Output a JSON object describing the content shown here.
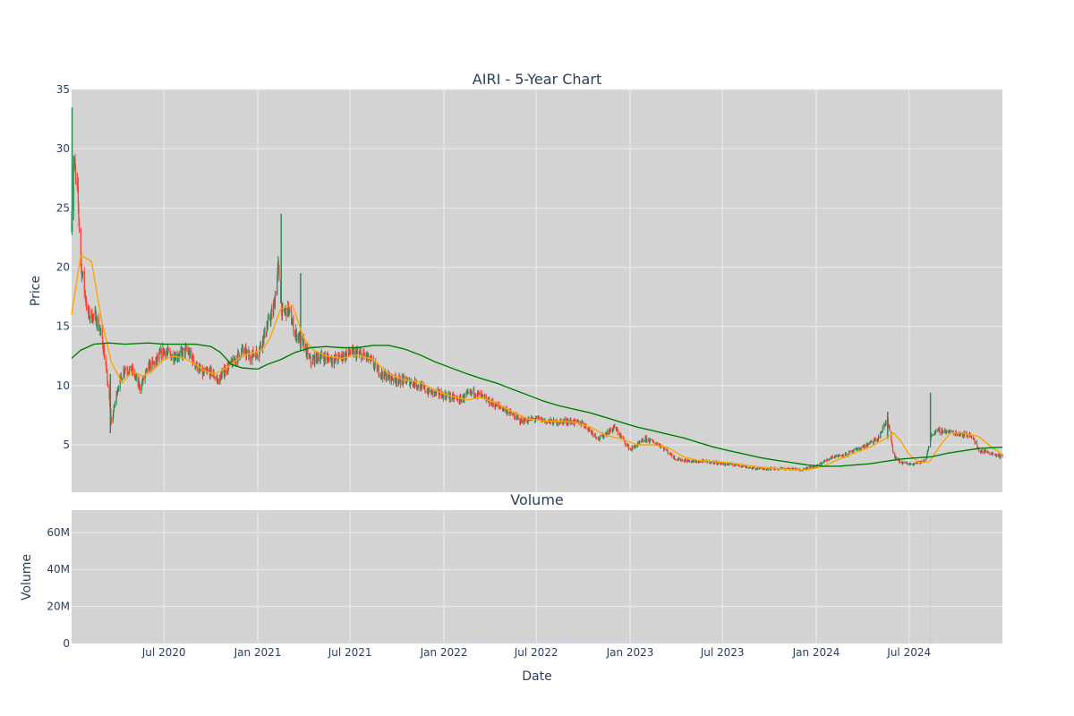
{
  "chart_data": {
    "type": "candlestick",
    "title": "AIRI - 5-Year Chart",
    "subplot_title": "Volume",
    "xlabel": "Date",
    "ylabel_price": "Price",
    "ylabel_volume": "Volume",
    "x_range": [
      "2020-01-02",
      "2024-12-31"
    ],
    "price_ylim": [
      1,
      35
    ],
    "volume_ylim": [
      0,
      72000000
    ],
    "x_ticks": [
      {
        "date": "2020-07-01",
        "label": "Jul 2020"
      },
      {
        "date": "2021-01-01",
        "label": "Jan 2021"
      },
      {
        "date": "2021-07-01",
        "label": "Jul 2021"
      },
      {
        "date": "2022-01-01",
        "label": "Jan 2022"
      },
      {
        "date": "2022-07-01",
        "label": "Jul 2022"
      },
      {
        "date": "2023-01-01",
        "label": "Jan 2023"
      },
      {
        "date": "2023-07-01",
        "label": "Jul 2023"
      },
      {
        "date": "2024-01-01",
        "label": "Jan 2024"
      },
      {
        "date": "2024-07-01",
        "label": "Jul 2024"
      }
    ],
    "price_ticks": [
      {
        "value": 5,
        "label": "5"
      },
      {
        "value": 10,
        "label": "10"
      },
      {
        "value": 15,
        "label": "15"
      },
      {
        "value": 20,
        "label": "20"
      },
      {
        "value": 25,
        "label": "25"
      },
      {
        "value": 30,
        "label": "30"
      },
      {
        "value": 35,
        "label": "35"
      }
    ],
    "volume_ticks": [
      {
        "value": 0,
        "label": "0"
      },
      {
        "value": 20000000,
        "label": "20M"
      },
      {
        "value": 40000000,
        "label": "40M"
      },
      {
        "value": 60000000,
        "label": "60M"
      }
    ],
    "price_close": [
      [
        "2020-01-02",
        24.0
      ],
      [
        "2020-01-06",
        29.0
      ],
      [
        "2020-01-14",
        26.0
      ],
      [
        "2020-01-21",
        20.0
      ],
      [
        "2020-02-03",
        16.0
      ],
      [
        "2020-02-18",
        15.8
      ],
      [
        "2020-03-02",
        14.0
      ],
      [
        "2020-03-12",
        10.5
      ],
      [
        "2020-03-20",
        6.8
      ],
      [
        "2020-04-01",
        9.8
      ],
      [
        "2020-04-15",
        11.5
      ],
      [
        "2020-05-01",
        11.2
      ],
      [
        "2020-05-15",
        9.8
      ],
      [
        "2020-06-01",
        11.6
      ],
      [
        "2020-06-15",
        12.0
      ],
      [
        "2020-07-01",
        13.0
      ],
      [
        "2020-07-15",
        12.5
      ],
      [
        "2020-08-01",
        12.6
      ],
      [
        "2020-08-15",
        13.0
      ],
      [
        "2020-09-01",
        11.8
      ],
      [
        "2020-09-15",
        11.0
      ],
      [
        "2020-10-01",
        11.2
      ],
      [
        "2020-10-15",
        10.4
      ],
      [
        "2020-11-01",
        11.5
      ],
      [
        "2020-11-15",
        12.0
      ],
      [
        "2020-12-01",
        13.0
      ],
      [
        "2020-12-15",
        12.5
      ],
      [
        "2021-01-01",
        12.8
      ],
      [
        "2021-01-15",
        14.5
      ],
      [
        "2021-02-01",
        16.5
      ],
      [
        "2021-02-10",
        20.0
      ],
      [
        "2021-02-18",
        16.0
      ],
      [
        "2021-03-01",
        16.5
      ],
      [
        "2021-03-15",
        14.5
      ],
      [
        "2021-04-01",
        13.5
      ],
      [
        "2021-04-15",
        12.0
      ],
      [
        "2021-05-01",
        12.5
      ],
      [
        "2021-06-01",
        12.2
      ],
      [
        "2021-07-01",
        12.8
      ],
      [
        "2021-08-01",
        12.5
      ],
      [
        "2021-09-01",
        11.0
      ],
      [
        "2021-10-01",
        10.5
      ],
      [
        "2021-11-01",
        10.3
      ],
      [
        "2021-12-01",
        9.5
      ],
      [
        "2022-01-01",
        9.2
      ],
      [
        "2022-02-01",
        8.8
      ],
      [
        "2022-03-01",
        9.5
      ],
      [
        "2022-04-01",
        8.6
      ],
      [
        "2022-05-01",
        8.0
      ],
      [
        "2022-06-01",
        7.0
      ],
      [
        "2022-07-01",
        7.2
      ],
      [
        "2022-08-01",
        6.9
      ],
      [
        "2022-09-01",
        7.0
      ],
      [
        "2022-10-01",
        6.8
      ],
      [
        "2022-11-01",
        5.5
      ],
      [
        "2022-12-01",
        6.5
      ],
      [
        "2023-01-01",
        4.6
      ],
      [
        "2023-02-01",
        5.5
      ],
      [
        "2023-03-01",
        5.0
      ],
      [
        "2023-04-01",
        3.8
      ],
      [
        "2023-05-01",
        3.6
      ],
      [
        "2023-06-01",
        3.6
      ],
      [
        "2023-07-01",
        3.4
      ],
      [
        "2023-08-01",
        3.3
      ],
      [
        "2023-09-01",
        3.0
      ],
      [
        "2023-10-01",
        3.0
      ],
      [
        "2023-11-01",
        3.0
      ],
      [
        "2023-12-01",
        2.9
      ],
      [
        "2024-01-01",
        3.2
      ],
      [
        "2024-02-01",
        4.0
      ],
      [
        "2024-03-01",
        4.2
      ],
      [
        "2024-04-01",
        4.8
      ],
      [
        "2024-05-01",
        5.5
      ],
      [
        "2024-05-20",
        7.2
      ],
      [
        "2024-06-01",
        4.0
      ],
      [
        "2024-06-15",
        3.5
      ],
      [
        "2024-07-01",
        3.4
      ],
      [
        "2024-08-01",
        3.6
      ],
      [
        "2024-08-15",
        6.0
      ],
      [
        "2024-09-01",
        6.2
      ],
      [
        "2024-10-01",
        6.0
      ],
      [
        "2024-11-01",
        5.8
      ],
      [
        "2024-11-15",
        4.5
      ],
      [
        "2024-12-01",
        4.4
      ],
      [
        "2024-12-31",
        4.0
      ]
    ],
    "spikes": [
      {
        "date": "2020-01-03",
        "low": 23.0,
        "high": 33.5
      },
      {
        "date": "2020-03-18",
        "low": 6.0,
        "high": 11.0
      },
      {
        "date": "2021-02-16",
        "low": 17.0,
        "high": 24.5
      },
      {
        "date": "2021-03-26",
        "low": 13.0,
        "high": 19.5
      },
      {
        "date": "2024-08-12",
        "low": 5.5,
        "high": 9.4
      },
      {
        "date": "2024-05-20",
        "low": 5.5,
        "high": 7.8
      }
    ],
    "series": [
      {
        "name": "",
        "color": "#ffa500",
        "points": [
          [
            "2020-01-02",
            16.0
          ],
          [
            "2020-01-20",
            21.0
          ],
          [
            "2020-02-10",
            20.5
          ],
          [
            "2020-03-01",
            15.5
          ],
          [
            "2020-03-20",
            12.0
          ],
          [
            "2020-04-10",
            10.2
          ],
          [
            "2020-05-01",
            11.2
          ],
          [
            "2020-05-20",
            10.8
          ],
          [
            "2020-06-10",
            11.3
          ],
          [
            "2020-07-01",
            12.2
          ],
          [
            "2020-07-20",
            12.5
          ],
          [
            "2020-08-10",
            12.3
          ],
          [
            "2020-09-01",
            11.8
          ],
          [
            "2020-09-20",
            11.2
          ],
          [
            "2020-10-10",
            11.0
          ],
          [
            "2020-11-01",
            11.5
          ],
          [
            "2020-12-01",
            12.5
          ],
          [
            "2021-01-10",
            13.0
          ],
          [
            "2021-01-25",
            14.0
          ],
          [
            "2021-02-15",
            16.5
          ],
          [
            "2021-03-10",
            16.8
          ],
          [
            "2021-04-01",
            14.0
          ],
          [
            "2021-04-20",
            13.0
          ],
          [
            "2021-05-15",
            12.5
          ],
          [
            "2021-06-15",
            12.3
          ],
          [
            "2021-07-15",
            12.6
          ],
          [
            "2021-08-15",
            12.2
          ],
          [
            "2021-09-15",
            11.0
          ],
          [
            "2021-10-15",
            10.5
          ],
          [
            "2021-11-15",
            10.3
          ],
          [
            "2021-12-15",
            9.6
          ],
          [
            "2022-01-15",
            9.1
          ],
          [
            "2022-02-15",
            8.8
          ],
          [
            "2022-03-15",
            9.0
          ],
          [
            "2022-04-15",
            8.5
          ],
          [
            "2022-05-15",
            7.8
          ],
          [
            "2022-06-15",
            7.2
          ],
          [
            "2022-07-15",
            7.0
          ],
          [
            "2022-08-15",
            7.0
          ],
          [
            "2022-09-15",
            6.9
          ],
          [
            "2022-10-15",
            6.5
          ],
          [
            "2022-11-15",
            5.8
          ],
          [
            "2022-12-15",
            5.5
          ],
          [
            "2023-01-15",
            5.0
          ],
          [
            "2023-02-15",
            5.0
          ],
          [
            "2023-03-15",
            4.8
          ],
          [
            "2023-04-15",
            4.0
          ],
          [
            "2023-05-15",
            3.7
          ],
          [
            "2023-06-15",
            3.6
          ],
          [
            "2023-07-15",
            3.5
          ],
          [
            "2023-08-15",
            3.3
          ],
          [
            "2023-09-15",
            3.1
          ],
          [
            "2023-10-15",
            3.0
          ],
          [
            "2023-11-15",
            2.9
          ],
          [
            "2023-12-15",
            2.9
          ],
          [
            "2024-01-15",
            3.2
          ],
          [
            "2024-02-15",
            3.8
          ],
          [
            "2024-03-15",
            4.3
          ],
          [
            "2024-04-15",
            4.8
          ],
          [
            "2024-05-15",
            5.5
          ],
          [
            "2024-06-01",
            6.0
          ],
          [
            "2024-06-15",
            5.3
          ],
          [
            "2024-07-01",
            4.2
          ],
          [
            "2024-07-20",
            3.5
          ],
          [
            "2024-08-10",
            3.6
          ],
          [
            "2024-09-01",
            5.0
          ],
          [
            "2024-09-20",
            6.0
          ],
          [
            "2024-10-15",
            6.0
          ],
          [
            "2024-11-15",
            5.7
          ],
          [
            "2024-12-10",
            4.8
          ],
          [
            "2024-12-31",
            4.2
          ]
        ]
      },
      {
        "name": "",
        "color": "#008000",
        "points": [
          [
            "2020-01-02",
            12.3
          ],
          [
            "2020-01-20",
            13.0
          ],
          [
            "2020-02-15",
            13.5
          ],
          [
            "2020-03-15",
            13.6
          ],
          [
            "2020-04-15",
            13.5
          ],
          [
            "2020-06-01",
            13.6
          ],
          [
            "2020-07-01",
            13.5
          ],
          [
            "2020-08-01",
            13.5
          ],
          [
            "2020-09-01",
            13.5
          ],
          [
            "2020-10-01",
            13.3
          ],
          [
            "2020-10-20",
            12.8
          ],
          [
            "2020-11-10",
            11.8
          ],
          [
            "2020-12-01",
            11.5
          ],
          [
            "2021-01-01",
            11.4
          ],
          [
            "2021-01-20",
            11.8
          ],
          [
            "2021-02-15",
            12.2
          ],
          [
            "2021-03-15",
            12.8
          ],
          [
            "2021-04-15",
            13.2
          ],
          [
            "2021-05-15",
            13.3
          ],
          [
            "2021-06-15",
            13.2
          ],
          [
            "2021-07-15",
            13.2
          ],
          [
            "2021-08-15",
            13.4
          ],
          [
            "2021-09-15",
            13.4
          ],
          [
            "2021-10-15",
            13.1
          ],
          [
            "2021-11-15",
            12.6
          ],
          [
            "2021-12-15",
            12.0
          ],
          [
            "2022-01-15",
            11.5
          ],
          [
            "2022-02-15",
            11.0
          ],
          [
            "2022-03-15",
            10.6
          ],
          [
            "2022-04-15",
            10.2
          ],
          [
            "2022-05-15",
            9.7
          ],
          [
            "2022-06-15",
            9.2
          ],
          [
            "2022-07-15",
            8.7
          ],
          [
            "2022-08-15",
            8.3
          ],
          [
            "2022-09-15",
            8.0
          ],
          [
            "2022-10-15",
            7.7
          ],
          [
            "2022-11-15",
            7.3
          ],
          [
            "2022-12-15",
            6.9
          ],
          [
            "2023-01-15",
            6.5
          ],
          [
            "2023-02-15",
            6.2
          ],
          [
            "2023-03-15",
            5.9
          ],
          [
            "2023-04-15",
            5.6
          ],
          [
            "2023-05-15",
            5.2
          ],
          [
            "2023-06-15",
            4.8
          ],
          [
            "2023-07-15",
            4.5
          ],
          [
            "2023-08-15",
            4.2
          ],
          [
            "2023-09-15",
            3.9
          ],
          [
            "2023-10-15",
            3.7
          ],
          [
            "2023-11-15",
            3.5
          ],
          [
            "2023-12-15",
            3.3
          ],
          [
            "2024-01-15",
            3.2
          ],
          [
            "2024-02-15",
            3.2
          ],
          [
            "2024-03-15",
            3.3
          ],
          [
            "2024-04-15",
            3.4
          ],
          [
            "2024-05-15",
            3.6
          ],
          [
            "2024-06-15",
            3.8
          ],
          [
            "2024-07-15",
            3.9
          ],
          [
            "2024-08-15",
            4.0
          ],
          [
            "2024-09-15",
            4.3
          ],
          [
            "2024-10-15",
            4.5
          ],
          [
            "2024-11-15",
            4.7
          ],
          [
            "2024-12-31",
            4.8
          ]
        ]
      }
    ],
    "volume_spike": {
      "date": "2024-08-12",
      "value": 69000000
    },
    "colors": {
      "increasing": "#2e8b57",
      "decreasing": "#ff4136",
      "plot_bg": "#d3d3d3",
      "grid": "#e8ecf2",
      "volume": "#c8c8e6"
    }
  }
}
